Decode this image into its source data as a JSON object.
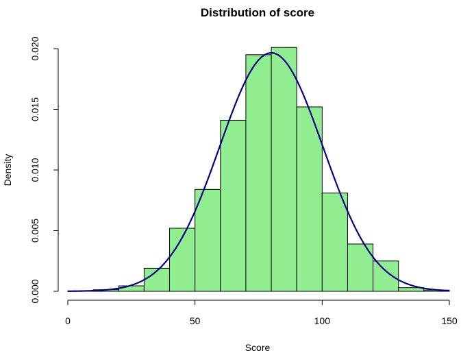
{
  "chart_data": {
    "type": "bar",
    "title": "Distribution of score",
    "xlabel": "Score",
    "ylabel": "Density",
    "xlim": [
      0,
      150
    ],
    "ylim": [
      0,
      0.02
    ],
    "xticks": [
      0,
      50,
      100,
      150
    ],
    "xtick_labels": [
      "0",
      "50",
      "100",
      "150"
    ],
    "yticks": [
      0,
      0.005,
      0.01,
      0.015,
      0.02
    ],
    "ytick_labels": [
      "0.000",
      "0.005",
      "0.010",
      "0.015",
      "0.020"
    ],
    "grid": false,
    "bins": [
      {
        "x0": 0,
        "x1": 10,
        "density": 3e-05
      },
      {
        "x0": 10,
        "x1": 20,
        "density": 0.00013
      },
      {
        "x0": 20,
        "x1": 30,
        "density": 0.00045
      },
      {
        "x0": 30,
        "x1": 40,
        "density": 0.0019
      },
      {
        "x0": 40,
        "x1": 50,
        "density": 0.0052
      },
      {
        "x0": 50,
        "x1": 60,
        "density": 0.0084
      },
      {
        "x0": 60,
        "x1": 70,
        "density": 0.0141
      },
      {
        "x0": 70,
        "x1": 80,
        "density": 0.0195
      },
      {
        "x0": 80,
        "x1": 90,
        "density": 0.0201
      },
      {
        "x0": 90,
        "x1": 100,
        "density": 0.0152
      },
      {
        "x0": 100,
        "x1": 110,
        "density": 0.0081
      },
      {
        "x0": 110,
        "x1": 120,
        "density": 0.0039
      },
      {
        "x0": 120,
        "x1": 130,
        "density": 0.0025
      },
      {
        "x0": 130,
        "x1": 140,
        "density": 0.0003
      },
      {
        "x0": 140,
        "x1": 150,
        "density": 0.0001
      }
    ],
    "curve": {
      "kind": "normal-density",
      "mean": 80,
      "sd": 20.3
    },
    "colors": {
      "bar_fill": "#90EE90",
      "bar_border": "#000000",
      "curve": "#00008B"
    }
  }
}
